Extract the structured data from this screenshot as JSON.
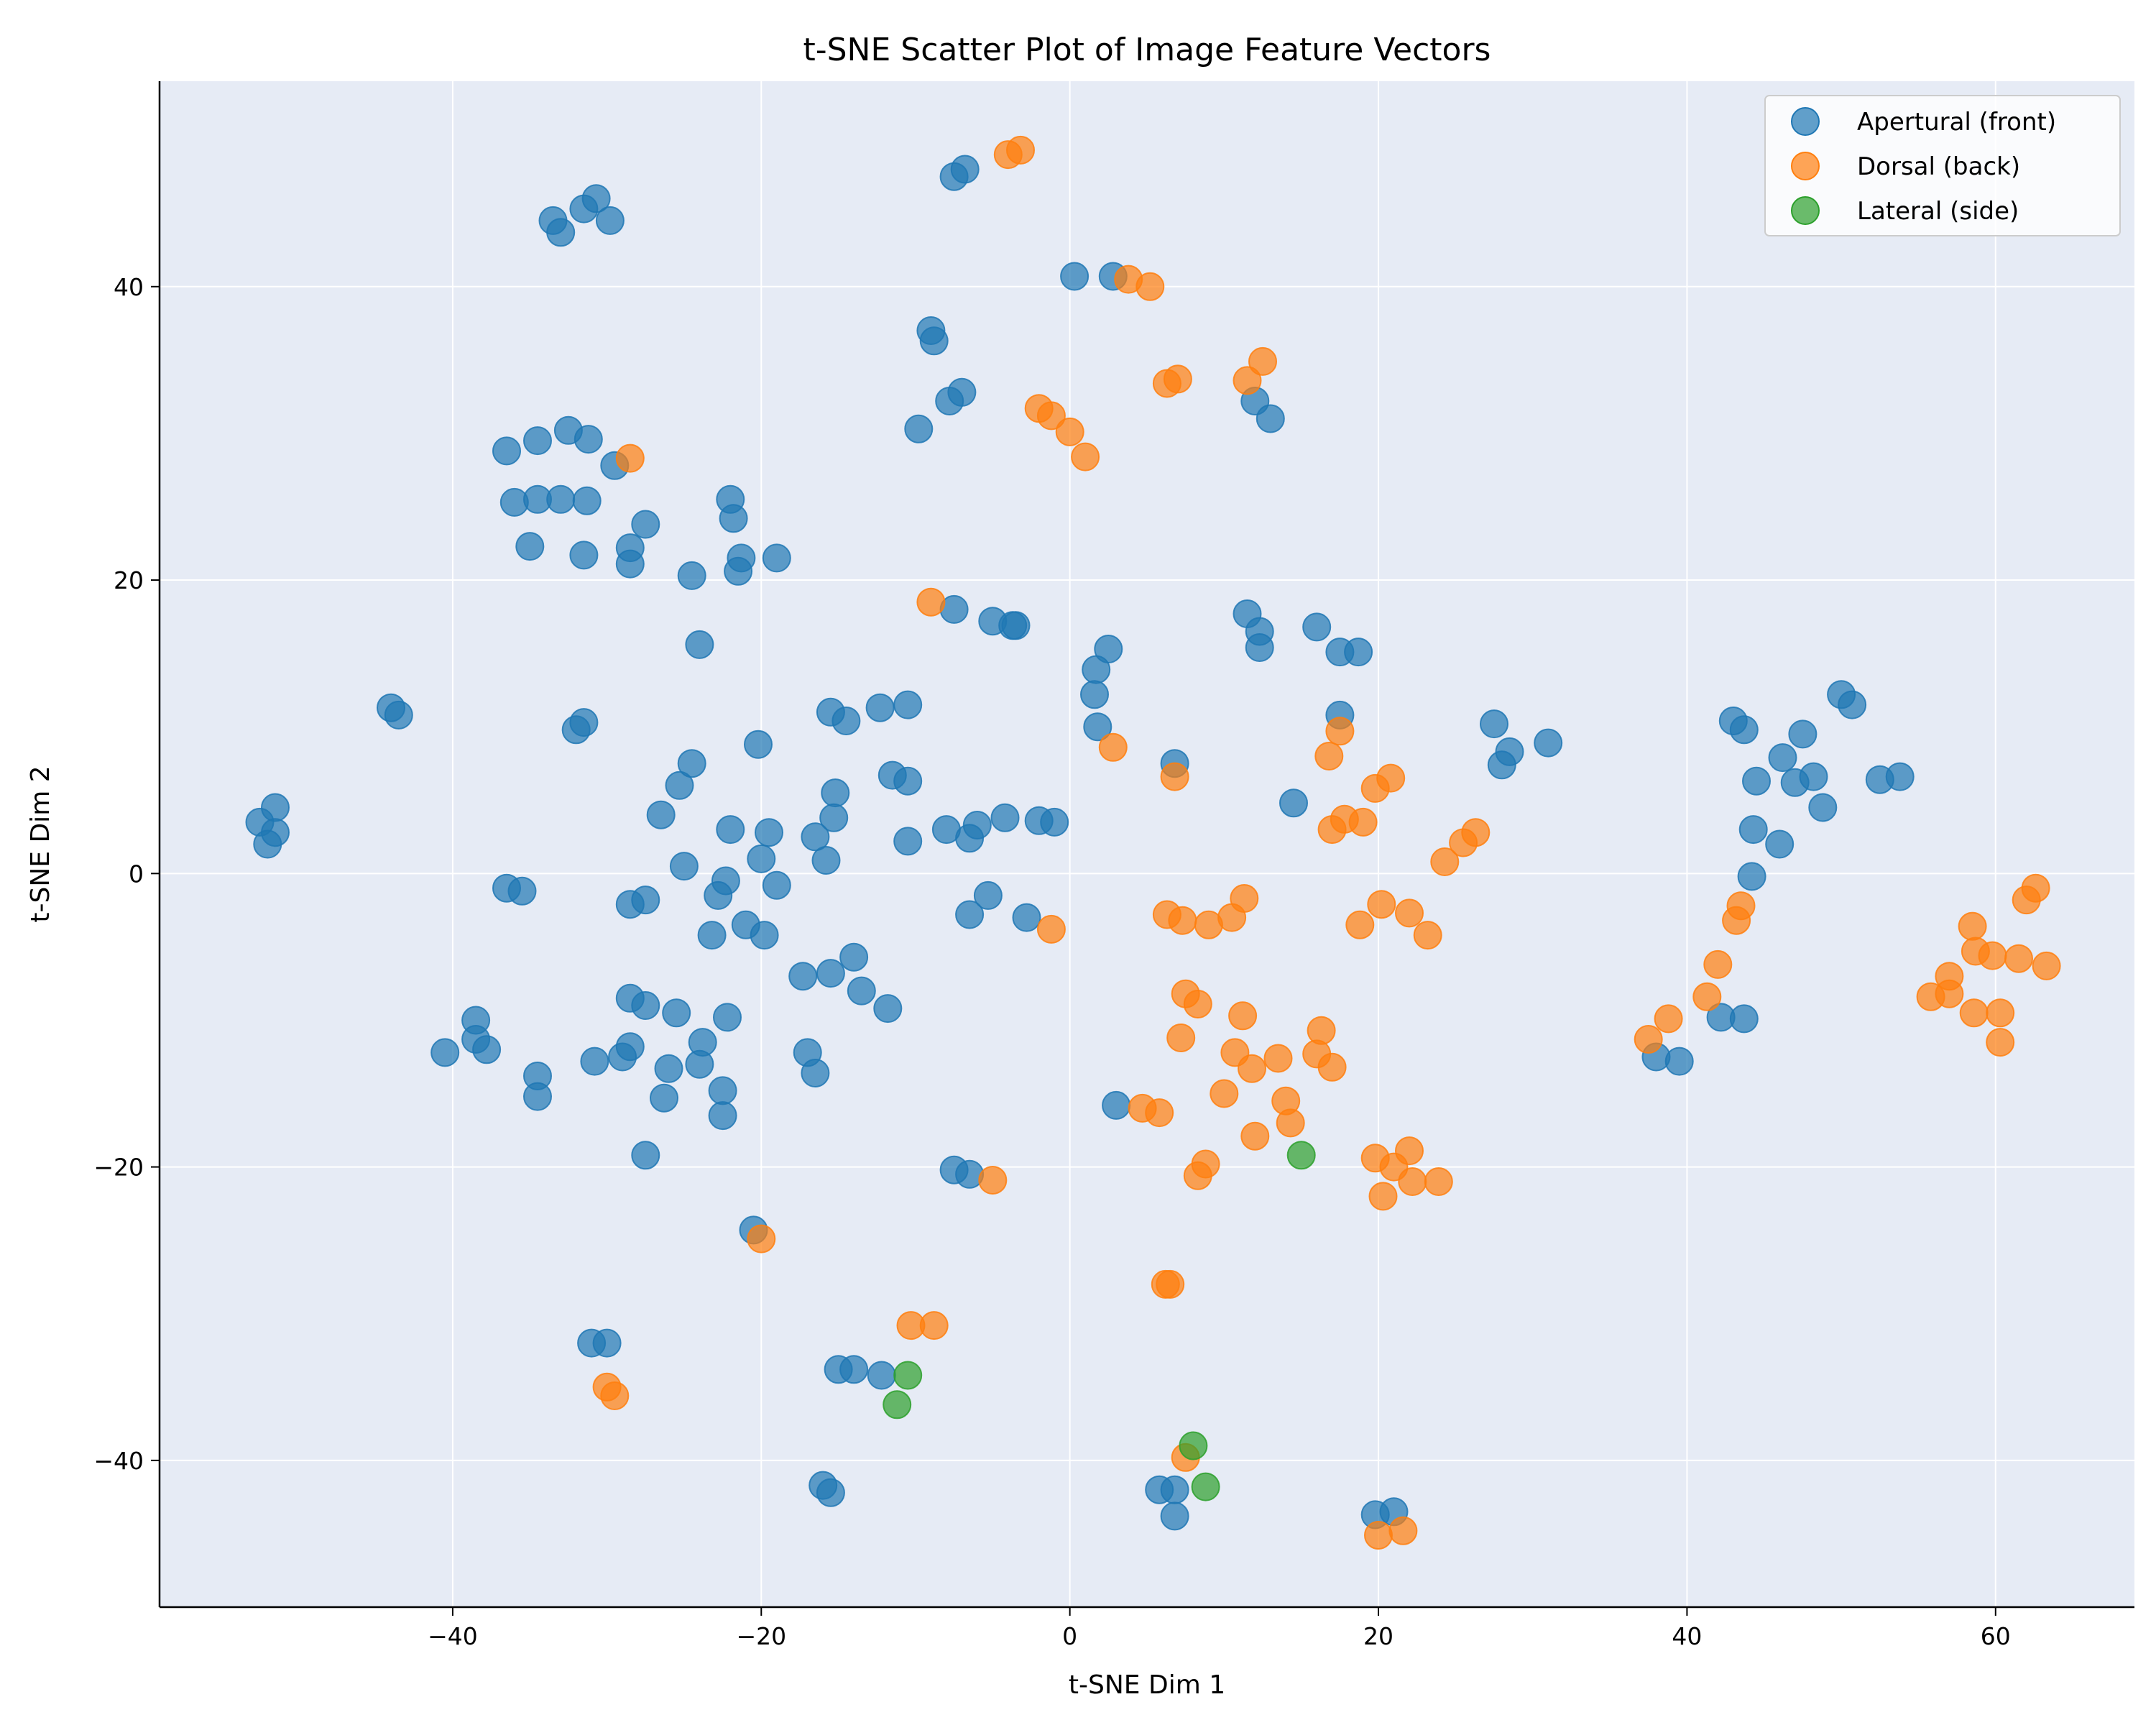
{
  "chart_data": {
    "type": "scatter",
    "title": "t-SNE Scatter Plot of Image Feature Vectors",
    "xlabel": "t-SNE Dim 1",
    "ylabel": "t-SNE Dim 2",
    "xlim": [
      -59,
      69
    ],
    "ylim": [
      -50,
      54
    ],
    "xticks": [
      -40,
      -20,
      0,
      20,
      40,
      60
    ],
    "yticks": [
      -40,
      -20,
      0,
      20,
      40
    ],
    "xtick_labels": [
      "−40",
      "−20",
      "0",
      "20",
      "40",
      "60"
    ],
    "ytick_labels": [
      "−40",
      "−20",
      "0",
      "20",
      "40"
    ],
    "grid": true,
    "legend_position": "top-right",
    "colors": {
      "plot_background": "#e6ebf5",
      "grid": "#ffffff"
    },
    "series": [
      {
        "name": "Apertural (front)",
        "color": "#1f77b4",
        "points": [
          [
            -52.5,
            3.5
          ],
          [
            -51.5,
            4.5
          ],
          [
            -51.5,
            2.8
          ],
          [
            -52,
            2
          ],
          [
            -44,
            11.3
          ],
          [
            -43.5,
            10.8
          ],
          [
            -33.5,
            44.5
          ],
          [
            -33,
            43.7
          ],
          [
            -31.5,
            45.3
          ],
          [
            -30.7,
            46
          ],
          [
            -29.8,
            44.5
          ],
          [
            -36.5,
            28.8
          ],
          [
            -34.5,
            29.5
          ],
          [
            -32.5,
            30.2
          ],
          [
            -31.2,
            29.6
          ],
          [
            -29.5,
            27.8
          ],
          [
            -36,
            25.3
          ],
          [
            -34.5,
            25.5
          ],
          [
            -33,
            25.5
          ],
          [
            -31.3,
            25.4
          ],
          [
            -35,
            22.3
          ],
          [
            -31.5,
            21.7
          ],
          [
            -28.5,
            22.2
          ],
          [
            -28.5,
            21.1
          ],
          [
            -27.5,
            23.8
          ],
          [
            -24.5,
            20.3
          ],
          [
            -22,
            25.5
          ],
          [
            -21.8,
            24.2
          ],
          [
            -21.3,
            21.5
          ],
          [
            -21.5,
            20.6
          ],
          [
            -19,
            21.5
          ],
          [
            -24,
            15.6
          ],
          [
            -32,
            9.8
          ],
          [
            -31.5,
            10.3
          ],
          [
            -26.5,
            4
          ],
          [
            -25.3,
            6
          ],
          [
            -24.5,
            7.5
          ],
          [
            -25,
            0.5
          ],
          [
            -22,
            3
          ],
          [
            -22.3,
            -0.5
          ],
          [
            -22.8,
            -1.5
          ],
          [
            -23.2,
            -4.2
          ],
          [
            -20.2,
            8.8
          ],
          [
            -19.5,
            2.8
          ],
          [
            -20,
            1
          ],
          [
            -19,
            -0.8
          ],
          [
            -21,
            -3.5
          ],
          [
            -19.8,
            -4.2
          ],
          [
            -36.5,
            -1
          ],
          [
            -35.5,
            -1.2
          ],
          [
            -28.5,
            -2.1
          ],
          [
            -27.5,
            -1.8
          ],
          [
            -28.5,
            -8.5
          ],
          [
            -27.5,
            -9
          ],
          [
            -25.5,
            -9.5
          ],
          [
            -22.2,
            -9.8
          ],
          [
            -23.8,
            -11.5
          ],
          [
            -38.5,
            -10
          ],
          [
            -38.5,
            -11.3
          ],
          [
            -37.8,
            -12
          ],
          [
            -40.5,
            -12.2
          ],
          [
            -34.5,
            -13.8
          ],
          [
            -34.5,
            -15.2
          ],
          [
            -30.8,
            -12.8
          ],
          [
            -29,
            -12.5
          ],
          [
            -28.5,
            -11.8
          ],
          [
            -26,
            -13.3
          ],
          [
            -24,
            -13
          ],
          [
            -22.5,
            -14.8
          ],
          [
            -26.3,
            -15.3
          ],
          [
            -22.5,
            -16.5
          ],
          [
            -27.5,
            -19.2
          ],
          [
            -20.5,
            -24.3
          ],
          [
            -31,
            -32
          ],
          [
            -30,
            -32
          ],
          [
            -15.5,
            11
          ],
          [
            -14.5,
            10.4
          ],
          [
            -12.3,
            11.3
          ],
          [
            -10.5,
            11.5
          ],
          [
            -11.5,
            6.7
          ],
          [
            -10.5,
            6.3
          ],
          [
            -15.2,
            5.5
          ],
          [
            -15.3,
            3.8
          ],
          [
            -16.5,
            2.5
          ],
          [
            -15.8,
            0.9
          ],
          [
            -10.5,
            2.2
          ],
          [
            -17.3,
            -7
          ],
          [
            -15.5,
            -6.8
          ],
          [
            -14,
            -5.7
          ],
          [
            -13.5,
            -8
          ],
          [
            -11.8,
            -9.2
          ],
          [
            -17,
            -12.2
          ],
          [
            -16.5,
            -13.6
          ],
          [
            -8,
            3
          ],
          [
            -6.5,
            2.4
          ],
          [
            -6,
            3.3
          ],
          [
            -4.2,
            3.8
          ],
          [
            -2,
            3.6
          ],
          [
            -1,
            3.5
          ],
          [
            -6.5,
            -2.8
          ],
          [
            -5.3,
            -1.5
          ],
          [
            -2.8,
            -3
          ],
          [
            -9,
            37
          ],
          [
            -8.8,
            36.3
          ],
          [
            -7.8,
            32.2
          ],
          [
            -7,
            32.8
          ],
          [
            -9.8,
            30.3
          ],
          [
            -7.5,
            47.5
          ],
          [
            -6.8,
            48
          ],
          [
            -7.5,
            18
          ],
          [
            -5,
            17.2
          ],
          [
            -3.7,
            16.9
          ],
          [
            -3.5,
            16.9
          ],
          [
            0.3,
            40.7
          ],
          [
            2.8,
            40.7
          ],
          [
            2.5,
            15.3
          ],
          [
            1.7,
            13.9
          ],
          [
            1.6,
            12.2
          ],
          [
            1.8,
            10
          ],
          [
            12,
            32.2
          ],
          [
            13,
            31
          ],
          [
            11.5,
            17.7
          ],
          [
            12.3,
            16.5
          ],
          [
            12.3,
            15.4
          ],
          [
            16,
            16.8
          ],
          [
            17.5,
            15.1
          ],
          [
            18.7,
            15.1
          ],
          [
            17.5,
            10.8
          ],
          [
            14.5,
            4.8
          ],
          [
            6.8,
            7.5
          ],
          [
            27.5,
            10.2
          ],
          [
            28.5,
            8.3
          ],
          [
            28,
            7.4
          ],
          [
            31,
            8.9
          ],
          [
            43,
            10.4
          ],
          [
            43.7,
            9.8
          ],
          [
            47.5,
            9.5
          ],
          [
            50,
            12.2
          ],
          [
            50.7,
            11.5
          ],
          [
            46.2,
            7.9
          ],
          [
            44.5,
            6.3
          ],
          [
            47,
            6.2
          ],
          [
            48.2,
            6.6
          ],
          [
            48.8,
            4.5
          ],
          [
            52.5,
            6.4
          ],
          [
            53.8,
            6.6
          ],
          [
            44.3,
            3
          ],
          [
            46,
            2
          ],
          [
            44.2,
            -0.2
          ],
          [
            42.2,
            -9.8
          ],
          [
            43.7,
            -9.9
          ],
          [
            38,
            -12.5
          ],
          [
            39.5,
            -12.8
          ],
          [
            -7.5,
            -20.2
          ],
          [
            -6.5,
            -20.5
          ],
          [
            3,
            -15.8
          ],
          [
            -15,
            -33.8
          ],
          [
            -14,
            -33.8
          ],
          [
            -12.2,
            -34.2
          ],
          [
            -16,
            -41.7
          ],
          [
            -15.5,
            -42.2
          ],
          [
            5.8,
            -42
          ],
          [
            6.8,
            -42
          ],
          [
            6.8,
            -43.8
          ],
          [
            19.8,
            -43.7
          ],
          [
            21,
            -43.5
          ]
        ]
      },
      {
        "name": "Dorsal (back)",
        "color": "#ff7f0e",
        "points": [
          [
            -4,
            49
          ],
          [
            -3.2,
            49.3
          ],
          [
            3.8,
            40.5
          ],
          [
            5.2,
            40
          ],
          [
            6.3,
            33.4
          ],
          [
            7,
            33.7
          ],
          [
            11.5,
            33.6
          ],
          [
            12.5,
            34.9
          ],
          [
            -2,
            31.7
          ],
          [
            -1.2,
            31.2
          ],
          [
            0,
            30.1
          ],
          [
            1,
            28.4
          ],
          [
            -28.5,
            28.3
          ],
          [
            -9,
            18.5
          ],
          [
            2.8,
            8.6
          ],
          [
            6.8,
            6.6
          ],
          [
            16.8,
            8
          ],
          [
            17.5,
            9.7
          ],
          [
            19.8,
            5.8
          ],
          [
            20.8,
            6.5
          ],
          [
            17,
            3
          ],
          [
            17.8,
            3.7
          ],
          [
            19,
            3.5
          ],
          [
            24.3,
            0.8
          ],
          [
            25.5,
            2.1
          ],
          [
            26.3,
            2.8
          ],
          [
            20.2,
            -2.1
          ],
          [
            22,
            -2.7
          ],
          [
            23.2,
            -4.2
          ],
          [
            18.8,
            -3.5
          ],
          [
            6.3,
            -2.8
          ],
          [
            7.3,
            -3.2
          ],
          [
            9,
            -3.5
          ],
          [
            10.5,
            -3
          ],
          [
            11.3,
            -1.7
          ],
          [
            -1.2,
            -3.8
          ],
          [
            7.5,
            -8.2
          ],
          [
            8.3,
            -8.9
          ],
          [
            7.2,
            -11.2
          ],
          [
            11.2,
            -9.7
          ],
          [
            10.7,
            -12.2
          ],
          [
            11.8,
            -13.3
          ],
          [
            13.5,
            -12.6
          ],
          [
            16.3,
            -10.7
          ],
          [
            16,
            -12.3
          ],
          [
            17,
            -13.2
          ],
          [
            10,
            -15
          ],
          [
            14,
            -15.5
          ],
          [
            14.3,
            -17
          ],
          [
            12,
            -17.9
          ],
          [
            4.7,
            -16
          ],
          [
            5.8,
            -16.3
          ],
          [
            8.8,
            -19.8
          ],
          [
            8.3,
            -20.6
          ],
          [
            -5,
            -20.9
          ],
          [
            19.8,
            -19.4
          ],
          [
            21,
            -20
          ],
          [
            22,
            -18.9
          ],
          [
            22.2,
            -21
          ],
          [
            23.9,
            -21
          ],
          [
            20.3,
            -22
          ],
          [
            -20,
            -24.9
          ],
          [
            6.2,
            -28
          ],
          [
            6.5,
            -28
          ],
          [
            -10.3,
            -30.8
          ],
          [
            -8.8,
            -30.8
          ],
          [
            -30,
            -35
          ],
          [
            -29.5,
            -35.6
          ],
          [
            7.5,
            -39.8
          ],
          [
            20,
            -45.1
          ],
          [
            21.6,
            -44.8
          ],
          [
            37.5,
            -11.3
          ],
          [
            38.8,
            -9.9
          ],
          [
            41.3,
            -8.4
          ],
          [
            42,
            -6.2
          ],
          [
            43.2,
            -3.2
          ],
          [
            43.5,
            -2.2
          ],
          [
            55.8,
            -8.4
          ],
          [
            57,
            -7
          ],
          [
            57,
            -8.2
          ],
          [
            58.5,
            -3.6
          ],
          [
            58.7,
            -5.3
          ],
          [
            59.8,
            -5.6
          ],
          [
            61.5,
            -5.8
          ],
          [
            58.6,
            -9.5
          ],
          [
            60.3,
            -9.5
          ],
          [
            60.3,
            -11.5
          ],
          [
            62,
            -1.8
          ],
          [
            62.6,
            -1
          ],
          [
            63.3,
            -6.3
          ]
        ]
      },
      {
        "name": "Lateral (side)",
        "color": "#2ca02c",
        "points": [
          [
            15,
            -19.2
          ],
          [
            -10.5,
            -34.2
          ],
          [
            -11.2,
            -36.2
          ],
          [
            8,
            -39
          ],
          [
            8.8,
            -41.8
          ]
        ]
      }
    ]
  }
}
